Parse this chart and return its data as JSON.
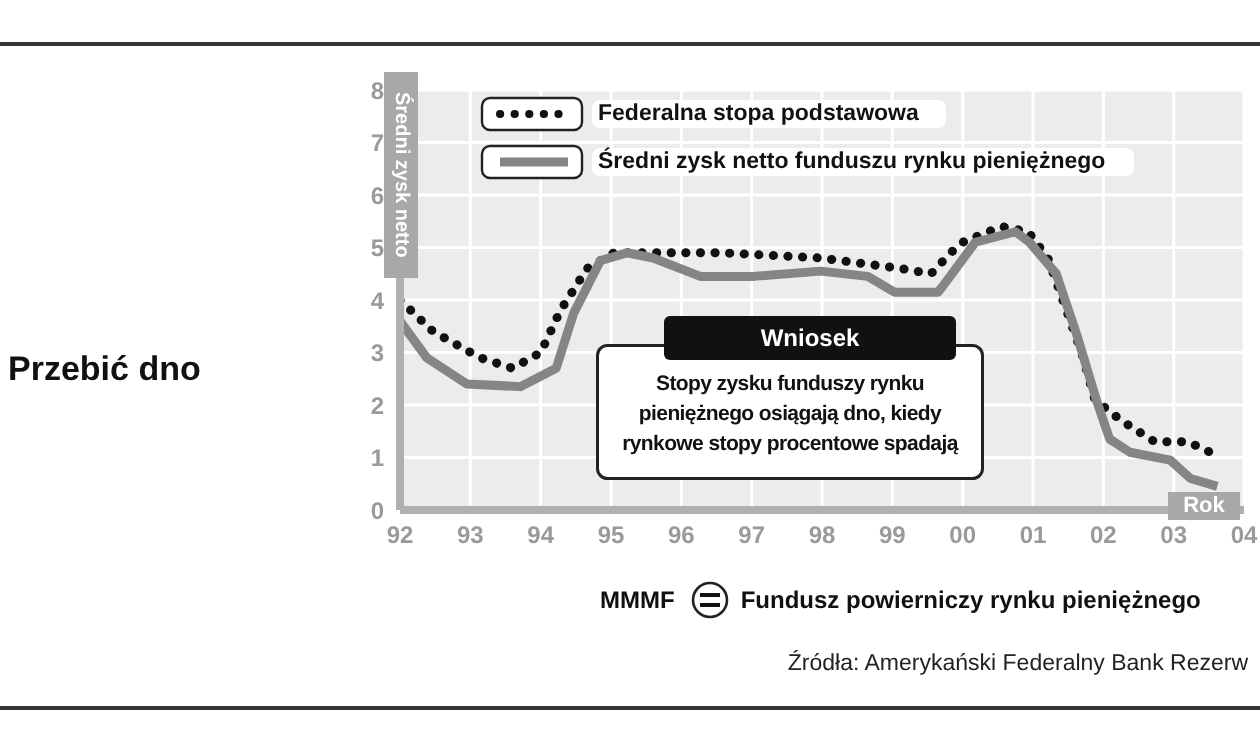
{
  "chart_data": {
    "type": "line",
    "title": "Przebić dno",
    "ylabel": "Średni zysk netto",
    "xlabel": "Rok",
    "xlim": [
      1992,
      2004
    ],
    "xticks": [
      {
        "value": 1992,
        "label": "92"
      },
      {
        "value": 1993,
        "label": "93"
      },
      {
        "value": 1994,
        "label": "94"
      },
      {
        "value": 1995,
        "label": "95"
      },
      {
        "value": 1996,
        "label": "96"
      },
      {
        "value": 1997,
        "label": "97"
      },
      {
        "value": 1998,
        "label": "98"
      },
      {
        "value": 1999,
        "label": "99"
      },
      {
        "value": 2000,
        "label": "00"
      },
      {
        "value": 2001,
        "label": "01"
      },
      {
        "value": 2002,
        "label": "02"
      },
      {
        "value": 2003,
        "label": "03"
      },
      {
        "value": 2004,
        "label": "04"
      }
    ],
    "ylim": [
      0,
      8
    ],
    "yticks": [
      0,
      1,
      2,
      3,
      4,
      5,
      6,
      7,
      8
    ],
    "grid": true,
    "legend": "top left",
    "marker": "none",
    "series": [
      {
        "name": "Federalna stopa podstawowa",
        "color": "#111111",
        "line_style": "dotted",
        "x": [
          1992.0,
          1992.47,
          1993.14,
          1993.6,
          1994.0,
          1994.28,
          1994.66,
          1995.04,
          1995.6,
          1996.56,
          1997.98,
          1999.12,
          1999.55,
          1999.83,
          2000.0,
          2000.55,
          2000.93,
          2001.21,
          2001.45,
          2001.69,
          2001.88,
          2002.26,
          2002.73,
          2003.2,
          2003.68
        ],
        "values": [
          4.0,
          3.4,
          2.9,
          2.7,
          3.0,
          3.8,
          4.6,
          4.9,
          4.9,
          4.9,
          4.8,
          4.6,
          4.5,
          4.9,
          5.1,
          5.4,
          5.3,
          4.8,
          3.9,
          3.0,
          2.1,
          1.7,
          1.3,
          1.3,
          1.0
        ]
      },
      {
        "name": "Średni zysk netto funduszu rynku pieniężnego",
        "color": "#858585",
        "line_style": "solid",
        "x": [
          1992.0,
          1992.38,
          1992.95,
          1993.71,
          1994.0,
          1994.22,
          1994.47,
          1994.85,
          1995.23,
          1995.6,
          1996.27,
          1997.03,
          1997.98,
          1998.65,
          1999.03,
          1999.65,
          1999.71,
          2000.18,
          2000.75,
          2000.95,
          2001.33,
          2001.62,
          2001.9,
          2002.09,
          2002.38,
          2002.95,
          2003.24,
          2003.62
        ],
        "values": [
          3.6,
          2.9,
          2.4,
          2.35,
          2.55,
          2.7,
          3.75,
          4.75,
          4.9,
          4.8,
          4.45,
          4.45,
          4.55,
          4.45,
          4.15,
          4.15,
          4.25,
          5.1,
          5.3,
          5.1,
          4.5,
          3.35,
          2.1,
          1.35,
          1.1,
          0.95,
          0.6,
          0.45
        ]
      }
    ],
    "annotations": [
      "Wniosek",
      "Stopy zysku funduszy rynku pieniężnego osiągają dno, kiedy rynkowe stopy procentowe spadają",
      "MMMF",
      "Fundusz powierniczy rynku pieniężnego",
      "Źródła: Amerykański Federalny Bank Rezerw"
    ]
  }
}
